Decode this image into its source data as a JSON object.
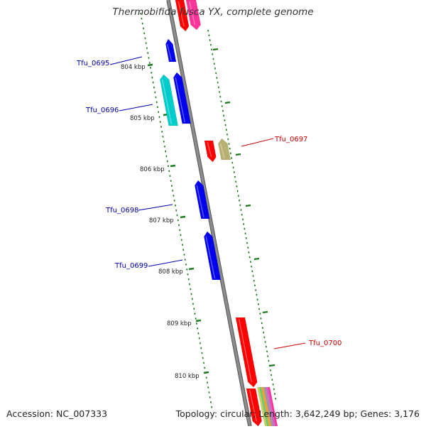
{
  "title": "Thermobifida fusca YX, complete genome",
  "footer": {
    "accession": "Accession: NC_007333",
    "summary": "Topology: circular; Length: 3,642,249 bp; Genes: 3,176"
  },
  "colors": {
    "backbone": "#8c8c8c",
    "tick": "#1a7a1a",
    "label_minus": "#0000aa",
    "label_plus": "#cc0000"
  },
  "scale_labels": [
    "804 kbp",
    "805 kbp",
    "806 kbp",
    "807 kbp",
    "808 kbp",
    "809 kbp",
    "810 kbp"
  ],
  "gene_labels": [
    {
      "name": "Tfu_0695",
      "strand": "minus"
    },
    {
      "name": "Tfu_0696",
      "strand": "minus"
    },
    {
      "name": "Tfu_0697",
      "strand": "plus"
    },
    {
      "name": "Tfu_0698",
      "strand": "minus"
    },
    {
      "name": "Tfu_0699",
      "strand": "minus"
    },
    {
      "name": "Tfu_0700",
      "strand": "plus"
    }
  ]
}
